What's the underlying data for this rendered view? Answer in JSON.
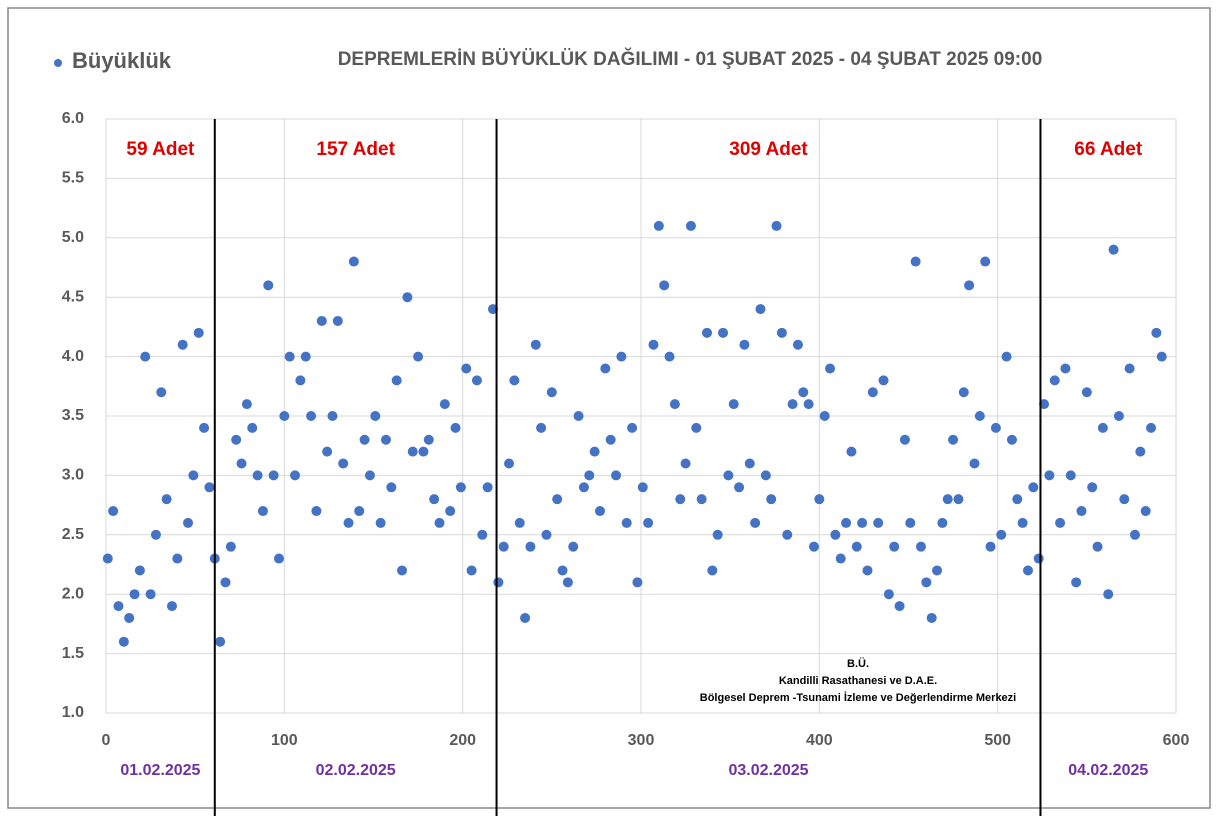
{
  "chart_data": {
    "type": "scatter",
    "title": "DEPREMLERİN BÜYÜKLÜK DAĞILIMI -  01 ŞUBAT 2025 - 04 ŞUBAT 2025 09:00",
    "legend": "top-left",
    "grid": true,
    "xlim": [
      0,
      600
    ],
    "ylim": [
      1,
      6
    ],
    "xticks": [
      0,
      100,
      200,
      300,
      400,
      500,
      600
    ],
    "yticks": [
      {
        "value": 1,
        "label": "1.0"
      },
      1.5,
      {
        "value": 2,
        "label": "2.0"
      },
      2.5,
      {
        "value": 3,
        "label": "3.0"
      },
      3.5,
      {
        "value": 4,
        "label": "4.0"
      },
      4.5,
      {
        "value": 5,
        "label": "5.0"
      },
      5.5,
      {
        "value": 6,
        "label": "6.0"
      }
    ],
    "dividers": [
      61,
      219,
      524
    ],
    "segments": [
      {
        "label": "59 Adet",
        "date": "01.02.2025"
      },
      {
        "label": "157 Adet",
        "date": "02.02.2025"
      },
      {
        "label": "309 Adet",
        "date": "03.02.2025"
      },
      {
        "label": "66 Adet",
        "date": "04.02.2025"
      }
    ],
    "credits": [
      "B.Ü.",
      "Kandilli Rasathanesi ve D.A.E.",
      "Bölgesel Deprem -Tsunami İzleme ve Değerlendirme Merkezi"
    ],
    "series": [
      {
        "name": "Büyüklük",
        "color": "#4472c4",
        "x": [
          1,
          4,
          7,
          10,
          13,
          16,
          19,
          22,
          25,
          28,
          31,
          34,
          37,
          40,
          43,
          46,
          49,
          52,
          55,
          58,
          61,
          64,
          67,
          70,
          73,
          76,
          79,
          82,
          85,
          88,
          91,
          94,
          97,
          100,
          103,
          106,
          109,
          112,
          115,
          118,
          121,
          124,
          127,
          130,
          133,
          136,
          139,
          142,
          145,
          148,
          151,
          154,
          157,
          160,
          163,
          166,
          169,
          172,
          175,
          178,
          181,
          184,
          187,
          190,
          193,
          196,
          199,
          202,
          205,
          208,
          211,
          214,
          217,
          220,
          223,
          226,
          229,
          232,
          235,
          238,
          241,
          244,
          247,
          250,
          253,
          256,
          259,
          262,
          265,
          268,
          271,
          274,
          277,
          280,
          283,
          286,
          289,
          292,
          295,
          298,
          301,
          304,
          307,
          310,
          313,
          316,
          319,
          322,
          325,
          328,
          331,
          334,
          337,
          340,
          343,
          346,
          349,
          352,
          355,
          358,
          361,
          364,
          367,
          370,
          373,
          376,
          379,
          382,
          385,
          388,
          391,
          394,
          397,
          400,
          403,
          406,
          409,
          412,
          415,
          418,
          421,
          424,
          427,
          430,
          433,
          436,
          439,
          442,
          445,
          448,
          451,
          454,
          457,
          460,
          463,
          466,
          469,
          472,
          475,
          478,
          481,
          484,
          487,
          490,
          493,
          496,
          499,
          502,
          505,
          508,
          511,
          514,
          517,
          520,
          523,
          526,
          529,
          532,
          535,
          538,
          541,
          544,
          547,
          550,
          553,
          556,
          559,
          562,
          565,
          568,
          571,
          574,
          577,
          580,
          583,
          586,
          589,
          592
        ],
        "values": [
          2.3,
          2.7,
          1.9,
          1.6,
          1.8,
          2.0,
          2.2,
          4.0,
          2.0,
          2.5,
          3.7,
          2.8,
          1.9,
          2.3,
          4.1,
          2.6,
          3.0,
          4.2,
          3.4,
          2.9,
          2.3,
          1.6,
          2.1,
          2.4,
          3.3,
          3.1,
          3.6,
          3.4,
          3.0,
          2.7,
          4.6,
          3.0,
          2.3,
          3.5,
          4.0,
          3.0,
          3.8,
          4.0,
          3.5,
          2.7,
          4.3,
          3.2,
          3.5,
          4.3,
          3.1,
          2.6,
          4.8,
          2.7,
          3.3,
          3.0,
          3.5,
          2.6,
          3.3,
          2.9,
          3.8,
          2.2,
          4.5,
          3.2,
          4.0,
          3.2,
          3.3,
          2.8,
          2.6,
          3.6,
          2.7,
          3.4,
          2.9,
          3.9,
          2.2,
          3.8,
          2.5,
          2.9,
          4.4,
          2.1,
          2.4,
          3.1,
          3.8,
          2.6,
          1.8,
          2.4,
          4.1,
          3.4,
          2.5,
          3.7,
          2.8,
          2.2,
          2.1,
          2.4,
          3.5,
          2.9,
          3.0,
          3.2,
          2.7,
          3.9,
          3.3,
          3.0,
          4.0,
          2.6,
          3.4,
          2.1,
          2.9,
          2.6,
          4.1,
          5.1,
          4.6,
          4.0,
          3.6,
          2.8,
          3.1,
          5.1,
          3.4,
          2.8,
          4.2,
          2.2,
          2.5,
          4.2,
          3.0,
          3.6,
          2.9,
          4.1,
          3.1,
          2.6,
          4.4,
          3.0,
          2.8,
          5.1,
          4.2,
          2.5,
          3.6,
          4.1,
          3.7,
          3.6,
          2.4,
          2.8,
          3.5,
          3.9,
          2.5,
          2.3,
          2.6,
          3.2,
          2.4,
          2.6,
          2.2,
          3.7,
          2.6,
          3.8,
          2.0,
          2.4,
          1.9,
          3.3,
          2.6,
          4.8,
          2.4,
          2.1,
          1.8,
          2.2,
          2.6,
          2.8,
          3.3,
          2.8,
          3.7,
          4.6,
          3.1,
          3.5,
          4.8,
          2.4,
          3.4,
          2.5,
          4.0,
          3.3,
          2.8,
          2.6,
          2.2,
          2.9,
          2.3,
          3.6,
          3.0,
          3.8,
          2.6,
          3.9,
          3.0,
          2.1,
          2.7,
          3.7,
          2.9,
          2.4,
          3.4,
          2.0,
          4.9,
          3.5,
          2.8,
          3.9,
          2.5,
          3.2,
          2.7,
          3.4,
          4.2,
          4.0
        ]
      }
    ]
  }
}
